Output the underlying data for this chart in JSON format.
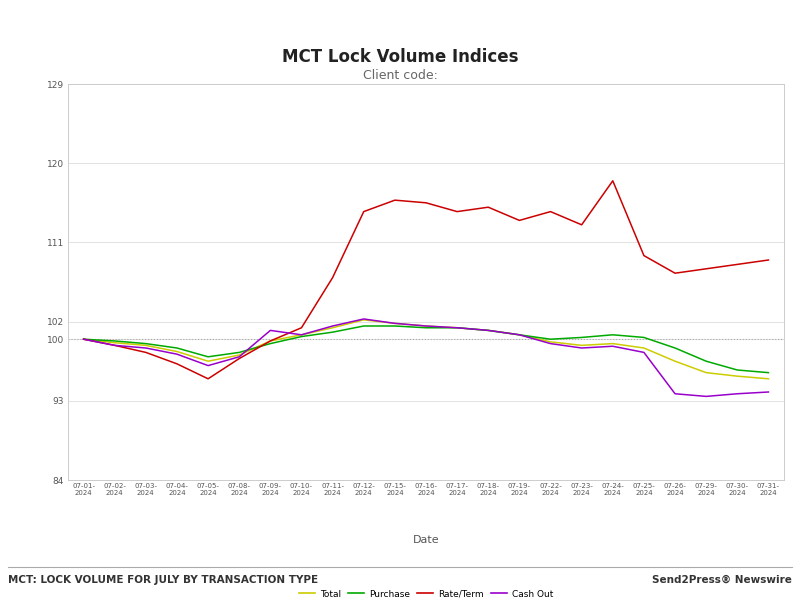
{
  "title": "MCT Lock Volume Indices",
  "subtitle": "Client code:",
  "xlabel": "Date",
  "footer_left": "MCT: LOCK VOLUME FOR JULY BY TRANSACTION TYPE",
  "footer_right": "Send2Press® Newswire",
  "ylim": [
    84,
    129
  ],
  "yticks": [
    84,
    93,
    100,
    102,
    111,
    120,
    129
  ],
  "background_color": "#ffffff",
  "plot_background_color": "#ffffff",
  "border_color": "#cccccc",
  "dates": [
    "07-01-\n2024",
    "07-02-\n2024",
    "07-03-\n2024",
    "07-04-\n2024",
    "07-05-\n2024",
    "07-08-\n2024",
    "07-09-\n2024",
    "07-10-\n2024",
    "07-11-\n2024",
    "07-12-\n2024",
    "07-15-\n2024",
    "07-16-\n2024",
    "07-17-\n2024",
    "07-18-\n2024",
    "07-19-\n2024",
    "07-22-\n2024",
    "07-23-\n2024",
    "07-24-\n2024",
    "07-25-\n2024",
    "07-26-\n2024",
    "07-29-\n2024",
    "07-30-\n2024",
    "07-31-\n2024"
  ],
  "series": {
    "Total": {
      "color": "#cccc00",
      "values": [
        100,
        99.6,
        99.3,
        98.6,
        97.5,
        98.2,
        99.8,
        100.5,
        101.3,
        102.2,
        101.8,
        101.5,
        101.3,
        101.0,
        100.5,
        99.7,
        99.3,
        99.5,
        99.0,
        97.5,
        96.2,
        95.8,
        95.5
      ]
    },
    "Purchase": {
      "color": "#00aa00",
      "values": [
        100,
        99.8,
        99.5,
        99.0,
        98.0,
        98.5,
        99.5,
        100.3,
        100.8,
        101.5,
        101.5,
        101.3,
        101.3,
        101.0,
        100.5,
        100.0,
        100.2,
        100.5,
        100.2,
        99.0,
        97.5,
        96.5,
        96.2
      ]
    },
    "Rate/Term": {
      "color": "#cc0000",
      "values": [
        100,
        99.3,
        98.5,
        97.2,
        95.5,
        97.8,
        99.8,
        101.3,
        107.0,
        114.5,
        115.8,
        115.5,
        114.5,
        115.0,
        113.5,
        114.5,
        113.0,
        118.0,
        109.5,
        107.5,
        108.0,
        108.5,
        109.0
      ]
    },
    "Cash Out": {
      "color": "#9900cc",
      "values": [
        100,
        99.3,
        99.0,
        98.3,
        97.0,
        98.0,
        101.0,
        100.5,
        101.5,
        102.3,
        101.8,
        101.5,
        101.3,
        101.0,
        100.5,
        99.5,
        99.0,
        99.2,
        98.5,
        93.8,
        93.5,
        93.8,
        94.0
      ]
    }
  },
  "legend_labels": [
    "Total",
    "Purchase",
    "Rate/Term",
    "Cash Out"
  ],
  "legend_colors": [
    "#cccc00",
    "#00aa00",
    "#cc0000",
    "#9900cc"
  ],
  "hline_value": 100,
  "hline_color": "#aaaaaa",
  "grid_color": "#dddddd"
}
